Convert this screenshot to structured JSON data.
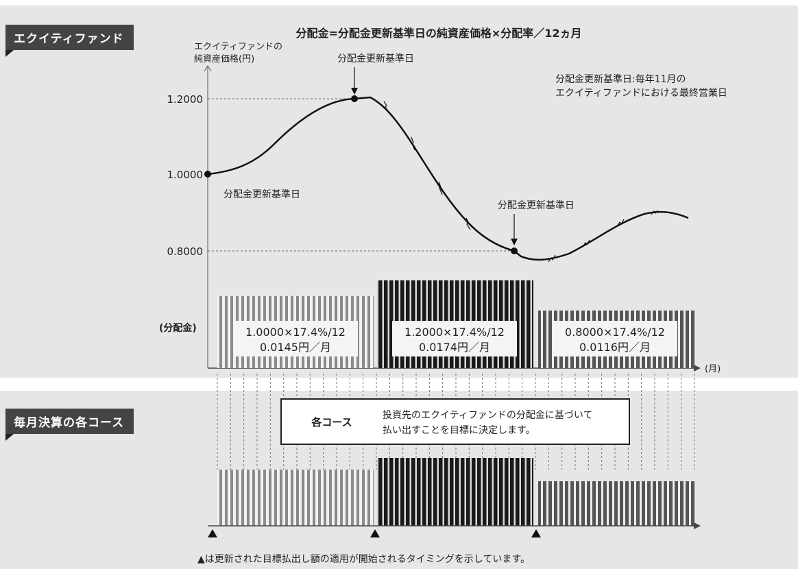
{
  "tags": {
    "equity": "エクイティファンド",
    "course": "毎月決算の各コース"
  },
  "formula": "分配金=分配金更新基準日の純資産価格×分配率／12ヵ月",
  "axis": {
    "nav_line1": "エクイティファンドの",
    "nav_line2": "純資産価格(円)",
    "month": "(月)"
  },
  "ticks": [
    "1.2000",
    "1.0000",
    "0.8000"
  ],
  "labels": {
    "ref_date": "分配金更新基準日",
    "dividend": "(分配金)"
  },
  "note": {
    "line1": "分配金更新基準日:毎年11月の",
    "line2": "エクイティファンドにおける最終営業日"
  },
  "dividend_boxes": [
    {
      "formula": "1.0000×17.4%/12",
      "amount": "0.0145円／月"
    },
    {
      "formula": "1.2000×17.4%/12",
      "amount": "0.0174円／月"
    },
    {
      "formula": "0.8000×17.4%/12",
      "amount": "0.0116円／月"
    }
  ],
  "course_box": {
    "title": "各コース",
    "line1": "投資先のエクイティファンドの分配金に基づいて",
    "line2": "払い出すことを目標に決定します。"
  },
  "footnote": "▲は更新された目標払出し額の適用が開始されるタイミングを示しています。"
}
